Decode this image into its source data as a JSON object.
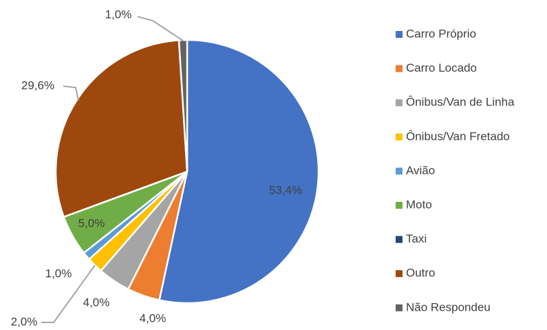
{
  "chart_data": {
    "type": "pie",
    "categories": [
      "Carro Próprio",
      "Carro Locado",
      "Ônibus/Van de Linha",
      "Ônibus/Van Fretado",
      "Avião",
      "Moto",
      "Taxi",
      "Outro",
      "Não Respondeu"
    ],
    "values": [
      53.4,
      4.0,
      4.0,
      2.0,
      1.0,
      5.0,
      0,
      29.6,
      1.0
    ],
    "value_labels": [
      "53,4%",
      "4,0%",
      "4,0%",
      "2,0%",
      "1,0%",
      "5,0%",
      null,
      "29,6%",
      "1,0%"
    ],
    "colors": [
      "#4472c4",
      "#ed7d31",
      "#a5a5a5",
      "#ffc000",
      "#5b9bd5",
      "#70ad47",
      "#264478",
      "#9e480e",
      "#636363"
    ],
    "legend": "right"
  }
}
